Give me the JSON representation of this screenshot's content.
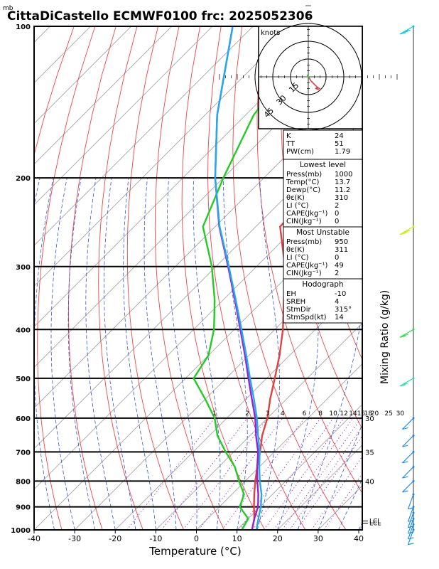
{
  "header": {
    "unit_label": "mb",
    "title": "CittaDiCastello ECMWF0100 frc: 2025052306"
  },
  "chart_data": {
    "type": "line",
    "xlabel": "Temperature (°C)",
    "right_axis_label": "Mixing Ratio (g/kg)",
    "xlim": [
      -40,
      40
    ],
    "x_ticks": [
      -40,
      -30,
      -20,
      -10,
      0,
      10,
      20,
      30,
      40
    ],
    "y_ticks_mb": [
      100,
      200,
      300,
      400,
      500,
      600,
      700,
      800,
      900,
      1000
    ],
    "series": [
      {
        "key": "temperature",
        "color": "#e04040",
        "points": [
          [
            1000,
            13.7
          ],
          [
            950,
            11.5
          ],
          [
            900,
            8.5
          ],
          [
            850,
            5.5
          ],
          [
            800,
            2.5
          ],
          [
            750,
            -0.5
          ],
          [
            700,
            -3.5
          ],
          [
            650,
            -7
          ],
          [
            600,
            -10
          ],
          [
            550,
            -14
          ],
          [
            500,
            -18
          ],
          [
            450,
            -22.5
          ],
          [
            400,
            -28
          ],
          [
            350,
            -35
          ],
          [
            300,
            -43
          ],
          [
            250,
            -54
          ],
          [
            200,
            -55
          ],
          [
            150,
            -58
          ],
          [
            100,
            -63
          ]
        ]
      },
      {
        "key": "dewpoint",
        "color": "#22cc22",
        "points": [
          [
            1000,
            11.2
          ],
          [
            950,
            10
          ],
          [
            900,
            5
          ],
          [
            850,
            3
          ],
          [
            800,
            -1.5
          ],
          [
            750,
            -6
          ],
          [
            700,
            -12
          ],
          [
            650,
            -18
          ],
          [
            600,
            -23
          ],
          [
            550,
            -30
          ],
          [
            500,
            -38
          ],
          [
            450,
            -40
          ],
          [
            400,
            -45
          ],
          [
            350,
            -52
          ],
          [
            300,
            -61
          ],
          [
            250,
            -73
          ],
          [
            200,
            -80
          ],
          [
            150,
            -88
          ],
          [
            100,
            -93
          ]
        ]
      },
      {
        "key": "parcel",
        "color": "#9922cc",
        "points": [
          [
            1000,
            13.7
          ],
          [
            950,
            11.5
          ],
          [
            900,
            9.5
          ],
          [
            850,
            6.5
          ],
          [
            800,
            3
          ],
          [
            750,
            -0.5
          ],
          [
            700,
            -4
          ],
          [
            650,
            -8.5
          ],
          [
            600,
            -13
          ],
          [
            550,
            -18.5
          ],
          [
            500,
            -24.5
          ],
          [
            450,
            -31
          ],
          [
            400,
            -38.5
          ],
          [
            350,
            -47
          ],
          [
            300,
            -57
          ],
          [
            250,
            -69
          ],
          [
            200,
            -82
          ],
          [
            150,
            -97
          ],
          [
            100,
            -115
          ]
        ]
      },
      {
        "key": "virtual",
        "color": "#22aaee",
        "points": [
          [
            1000,
            14.8
          ],
          [
            950,
            12.5
          ],
          [
            900,
            10.2
          ],
          [
            850,
            7.3
          ],
          [
            800,
            3.6
          ],
          [
            750,
            0
          ],
          [
            700,
            -3.6
          ],
          [
            650,
            -8
          ],
          [
            600,
            -12.6
          ],
          [
            550,
            -18
          ],
          [
            500,
            -24.1
          ],
          [
            450,
            -30.7
          ],
          [
            400,
            -38.2
          ],
          [
            350,
            -46.8
          ],
          [
            300,
            -56.8
          ],
          [
            250,
            -68.9
          ],
          [
            200,
            -82
          ],
          [
            150,
            -97
          ],
          [
            100,
            -115
          ]
        ]
      }
    ],
    "mixing_ratio_labels": [
      "1",
      "2",
      "3",
      "4",
      "6",
      "8",
      "10",
      "12",
      "14",
      "16",
      "18",
      "20",
      "25",
      "30"
    ],
    "mixing_ratio_values": [
      1,
      2,
      3,
      4,
      6,
      8,
      10,
      12,
      14,
      16,
      18,
      20,
      25,
      30
    ],
    "theta_e_labels": [
      {
        "text": "30",
        "p": 600
      },
      {
        "text": "35",
        "p": 700
      },
      {
        "text": "40",
        "p": 800
      }
    ],
    "lcl_labels": [
      "LCL",
      "LCL"
    ],
    "lcl_pressures": [
      960,
      970
    ],
    "wind_barbs_mb": [
      100,
      250,
      400,
      500,
      600,
      650,
      700,
      750,
      800,
      850,
      900,
      925,
      950,
      975,
      1000
    ],
    "wind_barb_colors": [
      "#00ccee",
      "#ccee00",
      "#22dd44",
      "#22ddaa",
      "#1188ee",
      "#1188ee",
      "#1188ee",
      "#1188ee",
      "#1188ee",
      "#1188ee",
      "#1188ee",
      "#1188ee",
      "#1188ee",
      "#1188ee",
      "#1188ee"
    ]
  },
  "hodograph": {
    "label": "knots",
    "ring_labels": [
      "15",
      "30",
      "45"
    ],
    "ring_values": [
      15,
      30,
      45
    ]
  },
  "indices": {
    "top": [
      {
        "label": "K",
        "value": "24"
      },
      {
        "label": "TT",
        "value": "51"
      },
      {
        "label": "PW(cm)",
        "value": "1.79"
      }
    ],
    "lowest_title": "Lowest level",
    "lowest": [
      {
        "label": "Press(mb)",
        "value": "1000"
      },
      {
        "label": "Temp(°C)",
        "value": "13.7"
      },
      {
        "label": "Dewp(°C)",
        "value": "11.2"
      },
      {
        "label": "θε(K)",
        "value": "310"
      },
      {
        "label": "LI (°C)",
        "value": "2"
      },
      {
        "label": "CAPE(Jkg⁻¹)",
        "value": "0"
      },
      {
        "label": "CIN(Jkg⁻¹)",
        "value": "0"
      }
    ],
    "unstable_title": "Most Unstable",
    "unstable": [
      {
        "label": "Press(mb)",
        "value": "950"
      },
      {
        "label": "θε(K)",
        "value": "311"
      },
      {
        "label": "LI (°C)",
        "value": "0"
      },
      {
        "label": "CAPE(Jkg⁻¹)",
        "value": "49"
      },
      {
        "label": "CIN(Jkg⁻¹)",
        "value": "2"
      }
    ],
    "hodo_title": "Hodograph",
    "hodo": [
      {
        "label": "EH",
        "value": "-10"
      },
      {
        "label": "SREH",
        "value": "4"
      },
      {
        "label": "StmDir",
        "value": "315°"
      },
      {
        "label": "StmSpd(kt)",
        "value": "14"
      }
    ]
  }
}
